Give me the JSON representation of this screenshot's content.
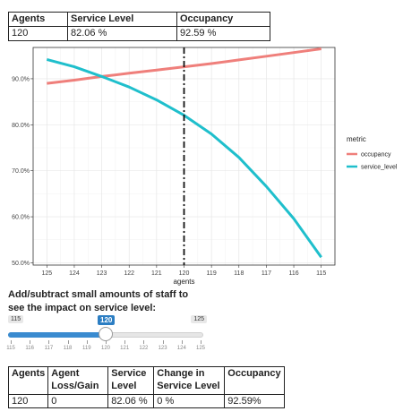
{
  "summary_table": {
    "headers": [
      "Agents",
      "Service Level",
      "Occupancy"
    ],
    "row": [
      "120",
      "82.06 %",
      "92.59 %"
    ]
  },
  "chart_data": {
    "type": "line",
    "x": [
      125,
      124,
      123,
      122,
      121,
      120,
      119,
      118,
      117,
      116,
      115
    ],
    "x_reversed": true,
    "series": [
      {
        "name": "occupancy",
        "color": "#ef7f7b",
        "values": [
          89.0,
          89.7,
          90.5,
          91.2,
          91.9,
          92.59,
          93.3,
          94.1,
          94.9,
          95.7,
          96.5
        ]
      },
      {
        "name": "service_level",
        "color": "#1fbfcc",
        "values": [
          94.2,
          92.6,
          90.5,
          88.2,
          85.4,
          82.06,
          78.0,
          72.9,
          66.6,
          59.6,
          51.2
        ]
      }
    ],
    "xlabel": "agents",
    "ylabel": "",
    "ylim": [
      49.5,
      96.8
    ],
    "yticks": [
      50,
      60,
      70,
      80,
      90
    ],
    "ytick_labels": [
      "50.0%",
      "60.0%",
      "70.0%",
      "80.0%",
      "90.0%"
    ],
    "vline_x": 120,
    "legend_title": "metric",
    "legend_position": "right",
    "grid": true
  },
  "slider": {
    "caption": "Add/subtract small amounts of staff to see the impact on service level:",
    "min": 115,
    "max": 125,
    "value": 120,
    "min_label": "115",
    "max_label": "125",
    "value_label": "120",
    "ticks": [
      "115",
      "116",
      "117",
      "118",
      "119",
      "120",
      "121",
      "122",
      "123",
      "124",
      "125"
    ]
  },
  "detail_table": {
    "headers": [
      "Agents",
      "Agent Loss/Gain",
      "Service Level",
      "Change in Service Level",
      "Occupancy"
    ],
    "row": [
      "120",
      "0",
      "82.06 %",
      "0 %",
      "92.59%"
    ]
  }
}
